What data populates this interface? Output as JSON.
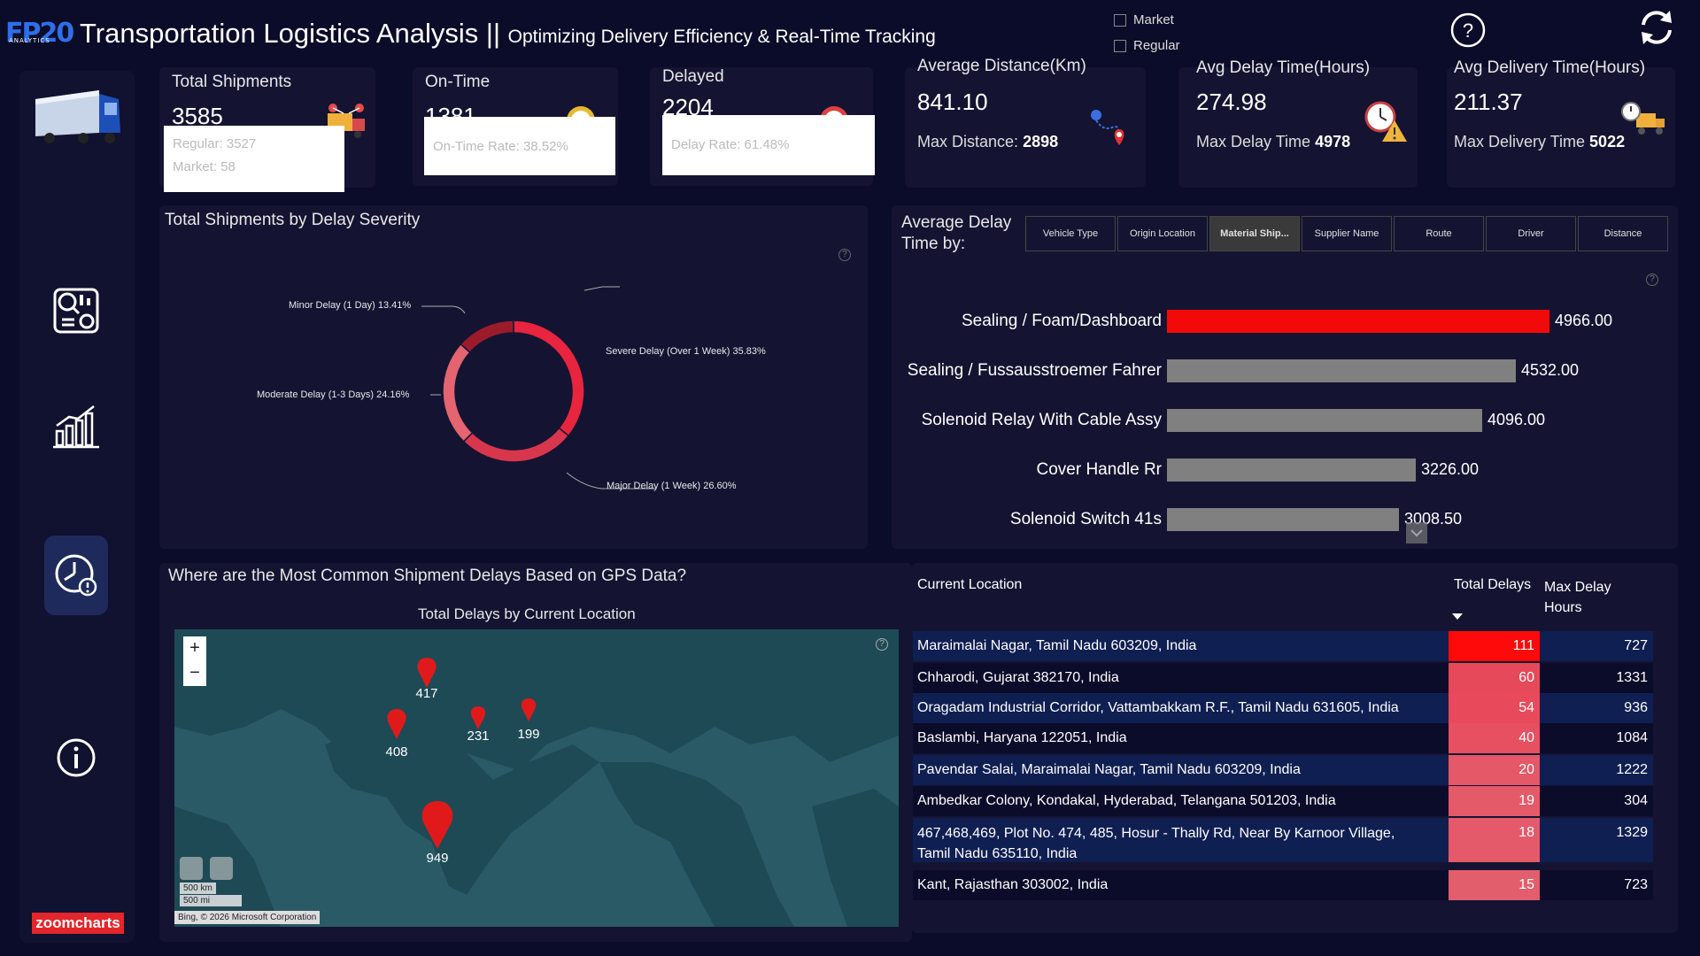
{
  "header": {
    "logo_text": "FP20",
    "logo_sub": "ANALYTICS",
    "title": "Transportation Logistics Analysis ||",
    "subtitle": "Optimizing Delivery Efficiency & Real-Time Tracking",
    "filters": [
      "Market",
      "Regular"
    ]
  },
  "sidebar": {
    "brand_label": "zoomcharts"
  },
  "kpis": {
    "total_shipments": {
      "label": "Total Shipments",
      "value": "3585",
      "tip_line1": "Regular: 3527",
      "tip_line2": "Market: 58"
    },
    "on_time": {
      "label": "On-Time",
      "value": "1381",
      "tip": "On-Time Rate: 38.52%"
    },
    "delayed": {
      "label": "Delayed",
      "value": "2204",
      "tip": "Delay Rate: 61.48%"
    },
    "avg_distance": {
      "label": "Average Distance(Km)",
      "value": "841.10",
      "sub_label": "Max Distance:",
      "sub_value": "2898"
    },
    "avg_delay": {
      "label": "Avg Delay Time(Hours)",
      "value": "274.98",
      "sub_label": "Max Delay Time",
      "sub_value": "4978"
    },
    "avg_delivery": {
      "label": "Avg Delivery Time(Hours)",
      "value": "211.37",
      "sub_label": "Max Delivery Time",
      "sub_value": "5022"
    }
  },
  "donut": {
    "title": "Total Shipments by Delay Severity",
    "labels": {
      "minor": "Minor Delay (1 Day) 13.41%",
      "severe": "Severe Delay (Over 1 Week) 35.83%",
      "moderate": "Moderate Delay (1-3 Days) 24.16%",
      "major": "Major Delay (1 Week) 26.60%"
    }
  },
  "bar_section": {
    "title_line1": "Average Delay",
    "title_line2": "Time by:",
    "tabs": [
      "Vehicle Type",
      "Origin Location",
      "Material Ship...",
      "Supplier Name",
      "Route",
      "Driver",
      "Distance"
    ],
    "selected_tab": "Material Ship..."
  },
  "map_section": {
    "title": "Where are the Most Common Shipment Delays Based on GPS Data?",
    "subtitle": "Total Delays by Current Location",
    "pins": [
      "417",
      "408",
      "231",
      "199",
      "949"
    ],
    "scale_km": "500 km",
    "scale_mi": "500 mi",
    "attribution": "Bing, © 2026 Microsoft Corporation",
    "zoom_in": "+",
    "zoom_out": "−"
  },
  "table": {
    "col_location": "Current Location",
    "col_total": "Total Delays",
    "col_max_line1": "Max Delay",
    "col_max_line2": "Hours",
    "rows": [
      {
        "location": "Maraimalai Nagar, Tamil Nadu 603209, India",
        "total": "111",
        "max": "727"
      },
      {
        "location": "Chharodi, Gujarat 382170, India",
        "total": "60",
        "max": "1331"
      },
      {
        "location": "Oragadam Industrial Corridor, Vattambakkam R.F., Tamil Nadu 631605, India",
        "total": "54",
        "max": "936"
      },
      {
        "location": "Baslambi, Haryana 122051, India",
        "total": "40",
        "max": "1084"
      },
      {
        "location": "Pavendar Salai, Maraimalai Nagar, Tamil Nadu 603209, India",
        "total": "20",
        "max": "1222"
      },
      {
        "location": "Ambedkar Colony, Kondakal, Hyderabad, Telangana 501203, India",
        "total": "19",
        "max": "304"
      },
      {
        "location_line1": "467,468,469, Plot No. 474, 485, Hosur - Thally Rd, Near By Karnoor Village,",
        "location_line2": "Tamil Nadu 635110, India",
        "total": "18",
        "max": "1329"
      },
      {
        "location": "Kant, Rajasthan 303002, India",
        "total": "15",
        "max": "723"
      }
    ]
  },
  "chart_data": [
    {
      "type": "pie",
      "title": "Total Shipments by Delay Severity",
      "categories": [
        "Severe Delay (Over 1 Week)",
        "Major Delay (1 Week)",
        "Moderate Delay (1-3 Days)",
        "Minor Delay (1 Day)"
      ],
      "values": [
        35.83,
        26.6,
        24.16,
        13.41
      ],
      "colors": [
        "#e8243e",
        "#d8364c",
        "#e4646f",
        "#9b1b2b"
      ],
      "donut": true
    },
    {
      "type": "bar",
      "orientation": "horizontal",
      "categories": [
        "Sealing / Foam/Dashboard",
        "Sealing / Fussausstroemer Fahrer",
        "Solenoid Relay With Cable Assy",
        "Cover Handle Rr",
        "Solenoid Switch 41s"
      ],
      "values": [
        4966.0,
        4532.0,
        4096.0,
        3226.0,
        3008.5
      ],
      "value_labels": [
        "4966.00",
        "4532.00",
        "4096.00",
        "3226.00",
        "3008.50"
      ],
      "colors": [
        "#f20a0a",
        "#808080",
        "#808080",
        "#808080",
        "#808080"
      ]
    }
  ]
}
